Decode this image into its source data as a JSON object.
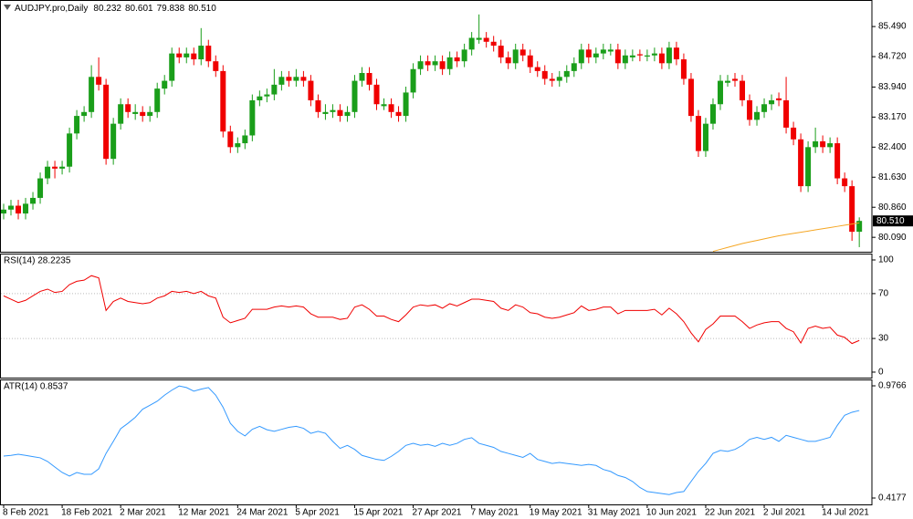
{
  "chart_data": [
    {
      "type": "candlestick",
      "title": "AUDJPY.pro,Daily",
      "header_values": [
        "80.232",
        "80.601",
        "79.838",
        "80.510"
      ],
      "categories": [
        "8 Feb 2021",
        null,
        null,
        null,
        null,
        null,
        null,
        null,
        "18 Feb 2021",
        null,
        null,
        null,
        null,
        null,
        null,
        null,
        "2 Mar 2021",
        null,
        null,
        null,
        null,
        null,
        null,
        null,
        "12 Mar 2021",
        null,
        null,
        null,
        null,
        null,
        null,
        null,
        "24 Mar 2021",
        null,
        null,
        null,
        null,
        null,
        null,
        null,
        "5 Apr 2021",
        null,
        null,
        null,
        null,
        null,
        null,
        null,
        "15 Apr 2021",
        null,
        null,
        null,
        null,
        null,
        null,
        null,
        "27 Apr 2021",
        null,
        null,
        null,
        null,
        null,
        null,
        null,
        "7 May 2021",
        null,
        null,
        null,
        null,
        null,
        null,
        null,
        "19 May 2021",
        null,
        null,
        null,
        null,
        null,
        null,
        null,
        "31 May 2021",
        null,
        null,
        null,
        null,
        null,
        null,
        null,
        "10 Jun 2021",
        null,
        null,
        null,
        null,
        null,
        null,
        null,
        "22 Jun 2021",
        null,
        null,
        null,
        null,
        null,
        null,
        null,
        "2 Jul 2021",
        null,
        null,
        null,
        null,
        null,
        null,
        null,
        "14 Jul 2021",
        null,
        null,
        null,
        null,
        null
      ],
      "open": [
        80.7,
        80.8,
        80.9,
        80.7,
        80.95,
        81.1,
        81.6,
        81.9,
        81.85,
        81.9,
        82.75,
        83.2,
        83.3,
        84.2,
        84.0,
        82.1,
        83.0,
        83.5,
        83.25,
        83.3,
        83.2,
        83.3,
        83.9,
        84.1,
        84.8,
        84.7,
        84.8,
        84.65,
        85.0,
        84.6,
        84.35,
        82.8,
        82.4,
        82.5,
        82.7,
        83.6,
        83.7,
        83.75,
        84.0,
        84.2,
        84.1,
        84.2,
        84.1,
        83.6,
        83.25,
        83.3,
        83.35,
        83.2,
        83.3,
        84.1,
        84.3,
        84.0,
        83.45,
        83.5,
        83.3,
        83.2,
        83.8,
        84.4,
        84.6,
        84.5,
        84.6,
        84.4,
        84.7,
        84.6,
        84.9,
        85.15,
        85.2,
        85.1,
        85.0,
        84.7,
        84.55,
        84.9,
        84.75,
        84.45,
        84.35,
        84.15,
        84.1,
        84.2,
        84.35,
        84.55,
        84.9,
        84.7,
        84.8,
        84.85,
        84.9,
        84.55,
        84.7,
        84.78,
        84.72,
        84.75,
        84.8,
        84.55,
        84.95,
        84.65,
        84.15,
        83.2,
        82.3,
        83.0,
        83.5,
        84.05,
        84.15,
        84.1,
        83.6,
        83.1,
        83.3,
        83.5,
        83.65,
        83.6,
        82.9,
        82.6,
        81.4,
        82.4,
        82.55,
        82.4,
        82.5,
        81.6,
        81.4,
        80.232
      ],
      "high": [
        80.95,
        81.05,
        81.05,
        81.1,
        81.25,
        81.75,
        82.05,
        82.05,
        82.05,
        82.9,
        83.35,
        83.45,
        84.5,
        84.7,
        84.15,
        83.15,
        83.65,
        83.65,
        83.5,
        83.45,
        83.45,
        84.05,
        84.25,
        84.95,
        84.95,
        84.95,
        84.95,
        85.45,
        85.15,
        84.75,
        84.5,
        82.95,
        82.65,
        82.85,
        83.75,
        83.85,
        83.9,
        84.4,
        84.35,
        84.35,
        84.4,
        84.35,
        84.25,
        83.75,
        83.5,
        83.5,
        83.5,
        83.45,
        84.25,
        84.45,
        84.45,
        84.15,
        83.65,
        83.65,
        83.45,
        83.95,
        84.55,
        84.75,
        84.75,
        84.75,
        84.75,
        84.85,
        84.85,
        85.05,
        85.35,
        85.8,
        85.35,
        85.25,
        85.15,
        84.85,
        85.05,
        85.05,
        84.9,
        84.6,
        84.5,
        84.3,
        84.35,
        84.5,
        84.7,
        85.05,
        85.05,
        84.95,
        85.05,
        85.05,
        85.05,
        84.9,
        84.9,
        84.9,
        84.9,
        84.95,
        84.95,
        85.1,
        85.1,
        84.8,
        84.3,
        83.35,
        83.15,
        83.65,
        84.25,
        84.25,
        84.3,
        84.25,
        83.75,
        83.45,
        83.65,
        83.75,
        83.8,
        84.2,
        83.05,
        82.75,
        82.55,
        82.9,
        82.7,
        82.65,
        82.65,
        81.75,
        81.55,
        80.601
      ],
      "low": [
        80.55,
        80.65,
        80.55,
        80.55,
        80.8,
        80.95,
        81.45,
        81.6,
        81.7,
        81.75,
        82.6,
        83.05,
        83.15,
        83.85,
        81.95,
        81.95,
        82.85,
        83.15,
        83.1,
        83.05,
        83.05,
        83.15,
        83.75,
        83.95,
        84.55,
        84.55,
        84.5,
        84.5,
        84.45,
        84.2,
        82.65,
        82.25,
        82.25,
        82.35,
        82.55,
        83.45,
        83.55,
        83.6,
        83.85,
        83.95,
        83.95,
        83.95,
        83.45,
        83.15,
        83.1,
        83.15,
        83.05,
        83.05,
        83.15,
        83.95,
        83.85,
        83.35,
        83.35,
        83.15,
        83.05,
        83.05,
        83.65,
        84.25,
        84.35,
        84.35,
        84.25,
        84.25,
        84.45,
        84.45,
        84.75,
        85.05,
        84.95,
        84.85,
        84.55,
        84.4,
        84.4,
        84.6,
        84.3,
        84.2,
        84.0,
        83.95,
        83.95,
        84.05,
        84.2,
        84.4,
        84.55,
        84.55,
        84.65,
        84.75,
        84.4,
        84.4,
        84.6,
        84.6,
        84.6,
        84.6,
        84.4,
        84.4,
        84.5,
        84.0,
        83.05,
        82.15,
        82.15,
        82.85,
        83.35,
        83.95,
        83.95,
        83.45,
        82.95,
        82.95,
        83.15,
        83.35,
        83.45,
        82.75,
        82.45,
        81.25,
        81.25,
        82.25,
        82.25,
        82.25,
        81.45,
        81.25,
        80.0,
        79.838
      ],
      "close": [
        80.8,
        80.9,
        80.7,
        80.95,
        81.1,
        81.6,
        81.9,
        81.85,
        81.9,
        82.75,
        83.2,
        83.3,
        84.2,
        84.0,
        82.1,
        83.0,
        83.5,
        83.3,
        83.3,
        83.2,
        83.3,
        83.9,
        84.1,
        84.8,
        84.7,
        84.8,
        84.65,
        85.0,
        84.6,
        84.35,
        82.8,
        82.4,
        82.5,
        82.7,
        83.6,
        83.7,
        83.75,
        84.0,
        84.2,
        84.1,
        84.2,
        84.1,
        83.6,
        83.3,
        83.3,
        83.35,
        83.2,
        83.3,
        84.1,
        84.3,
        84.0,
        83.5,
        83.5,
        83.3,
        83.2,
        83.8,
        84.4,
        84.6,
        84.5,
        84.6,
        84.4,
        84.7,
        84.6,
        84.9,
        85.2,
        85.2,
        85.1,
        85.0,
        84.7,
        84.55,
        84.9,
        84.75,
        84.45,
        84.35,
        84.15,
        84.1,
        84.2,
        84.35,
        84.55,
        84.9,
        84.7,
        84.8,
        84.9,
        84.9,
        84.55,
        84.75,
        84.75,
        84.75,
        84.75,
        84.8,
        84.55,
        84.95,
        84.65,
        84.15,
        83.2,
        82.3,
        83.0,
        83.5,
        84.1,
        84.1,
        84.1,
        83.6,
        83.1,
        83.3,
        83.5,
        83.6,
        83.6,
        82.9,
        82.6,
        81.4,
        82.4,
        82.55,
        82.4,
        82.5,
        81.6,
        81.4,
        80.232,
        80.51
      ],
      "up_color": "#1a9e1a",
      "down_color": "#f00000",
      "overlay": {
        "color": "#f5a623",
        "values": [
          null,
          null,
          null,
          null,
          null,
          null,
          null,
          null,
          null,
          null,
          null,
          null,
          null,
          null,
          null,
          null,
          null,
          null,
          null,
          null,
          null,
          null,
          null,
          null,
          null,
          null,
          null,
          null,
          null,
          null,
          null,
          null,
          null,
          null,
          null,
          null,
          null,
          null,
          null,
          null,
          null,
          null,
          null,
          null,
          null,
          null,
          null,
          null,
          null,
          null,
          null,
          null,
          null,
          null,
          null,
          null,
          null,
          null,
          null,
          null,
          null,
          null,
          null,
          null,
          null,
          null,
          null,
          null,
          null,
          null,
          null,
          null,
          null,
          null,
          null,
          null,
          null,
          null,
          null,
          null,
          null,
          null,
          null,
          null,
          null,
          null,
          null,
          null,
          null,
          null,
          null,
          null,
          null,
          null,
          null,
          null,
          null,
          79.73,
          79.78,
          79.83,
          79.88,
          79.93,
          79.97,
          80.01,
          80.05,
          80.09,
          80.13,
          80.16,
          80.19,
          80.22,
          80.25,
          80.28,
          80.31,
          80.34,
          80.37,
          80.4,
          80.43,
          80.46
        ]
      },
      "price_tag": {
        "value": 80.51,
        "label": "80.510"
      },
      "ylim": [
        79.72,
        86.17
      ],
      "yticks": [
        {
          "value": 85.49,
          "label": "85.490"
        },
        {
          "value": 84.72,
          "label": "84.720"
        },
        {
          "value": 83.94,
          "label": "83.940"
        },
        {
          "value": 83.17,
          "label": "83.170"
        },
        {
          "value": 82.4,
          "label": "82.400"
        },
        {
          "value": 81.63,
          "label": "81.630"
        },
        {
          "value": 80.86,
          "label": "80.860"
        },
        {
          "value": 80.09,
          "label": "80.090"
        }
      ]
    },
    {
      "type": "line",
      "title": "RSI(14) 28.2235",
      "color": "#f00000",
      "levels": [
        70,
        30
      ],
      "values": [
        68,
        65,
        62,
        64,
        68,
        72,
        74,
        71,
        72,
        78,
        81,
        82,
        86,
        84,
        55,
        63,
        66,
        63,
        62,
        61,
        62,
        66,
        68,
        72,
        71,
        72,
        70,
        72,
        68,
        66,
        49,
        44,
        46,
        48,
        56,
        56,
        56,
        58,
        59,
        58,
        59,
        58,
        52,
        49,
        49,
        49,
        47,
        48,
        58,
        60,
        56,
        50,
        50,
        47,
        45,
        51,
        58,
        60,
        59,
        60,
        57,
        61,
        59,
        62,
        65,
        65,
        64,
        63,
        57,
        55,
        60,
        58,
        53,
        52,
        49,
        48,
        49,
        51,
        53,
        59,
        55,
        56,
        58,
        58,
        52,
        55,
        55,
        55,
        55,
        56,
        51,
        57,
        52,
        45,
        35,
        27,
        38,
        43,
        50,
        50,
        50,
        45,
        39,
        42,
        44,
        45,
        45,
        39,
        36,
        26,
        39,
        41,
        39,
        40,
        33,
        31,
        25.5,
        28.2235
      ],
      "ylim": [
        -4.9,
        105.7
      ],
      "yticks": [
        100,
        70,
        30,
        0
      ]
    },
    {
      "type": "line",
      "title": "ATR(14) 0.8537",
      "color": "#3399ff",
      "values": [
        0.627,
        0.63,
        0.636,
        0.63,
        0.624,
        0.618,
        0.6,
        0.572,
        0.545,
        0.527,
        0.545,
        0.536,
        0.536,
        0.563,
        0.64,
        0.7,
        0.763,
        0.79,
        0.82,
        0.86,
        0.88,
        0.9,
        0.93,
        0.955,
        0.976,
        0.968,
        0.95,
        0.96,
        0.968,
        0.93,
        0.87,
        0.79,
        0.75,
        0.727,
        0.76,
        0.775,
        0.758,
        0.75,
        0.76,
        0.77,
        0.775,
        0.765,
        0.74,
        0.75,
        0.74,
        0.7,
        0.665,
        0.68,
        0.66,
        0.63,
        0.62,
        0.61,
        0.605,
        0.625,
        0.65,
        0.68,
        0.69,
        0.68,
        0.685,
        0.675,
        0.69,
        0.68,
        0.69,
        0.71,
        0.718,
        0.69,
        0.68,
        0.67,
        0.65,
        0.64,
        0.63,
        0.62,
        0.64,
        0.61,
        0.6,
        0.59,
        0.595,
        0.59,
        0.585,
        0.58,
        0.585,
        0.58,
        0.56,
        0.55,
        0.53,
        0.52,
        0.5,
        0.47,
        0.45,
        0.445,
        0.44,
        0.435,
        0.445,
        0.45,
        0.5,
        0.55,
        0.59,
        0.64,
        0.655,
        0.65,
        0.66,
        0.68,
        0.71,
        0.72,
        0.71,
        0.72,
        0.7,
        0.73,
        0.72,
        0.71,
        0.7,
        0.7,
        0.71,
        0.72,
        0.78,
        0.83,
        0.845,
        0.8537
      ],
      "ylim": [
        0.3859,
        1.0084
      ],
      "yticks": [
        0.9766,
        0.4177
      ]
    }
  ]
}
